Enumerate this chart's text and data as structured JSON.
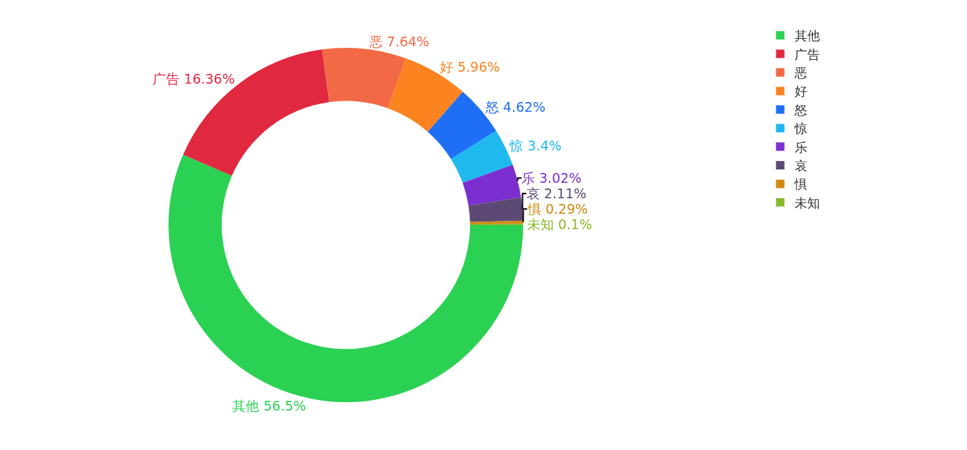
{
  "chart_data": {
    "type": "donut",
    "categories": [
      "其他",
      "广告",
      "恶",
      "好",
      "怒",
      "惊",
      "乐",
      "哀",
      "惧",
      "未知"
    ],
    "values": [
      56.5,
      16.36,
      7.64,
      5.96,
      4.62,
      3.4,
      3.02,
      2.11,
      0.29,
      0.1
    ],
    "value_labels": [
      "其他 56.5%",
      "广告 16.36%",
      "恶 7.64%",
      "好 5.96%",
      "怒 4.62%",
      "惊 3.4%",
      "乐 3.02%",
      "哀 2.11%",
      "惧 0.29%",
      "未知 0.1%"
    ],
    "colors": [
      "#2bd152",
      "#e0283f",
      "#f26a45",
      "#fb8320",
      "#1e6ff5",
      "#1fb8ef",
      "#7b2fd0",
      "#5c4a74",
      "#d08a10",
      "#8ab82c"
    ],
    "legend": "right"
  }
}
